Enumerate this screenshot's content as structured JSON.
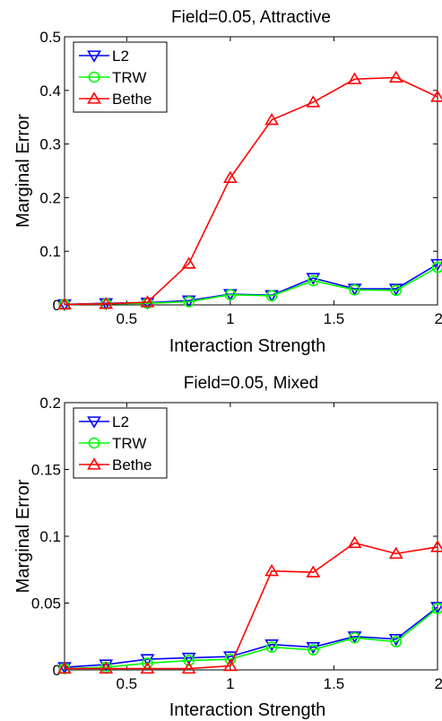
{
  "chart_data": [
    {
      "type": "line",
      "title": "Field=0.05, Attractive",
      "xlabel": "Interaction Strength",
      "ylabel": "Marginal Error",
      "xlim": [
        0.2,
        2
      ],
      "ylim": [
        0,
        0.5
      ],
      "xticks": [
        0.5,
        1,
        1.5,
        2
      ],
      "xtick_labels": [
        "0.5",
        "1",
        "1.5",
        "2"
      ],
      "yticks": [
        0,
        0.1,
        0.2,
        0.3,
        0.4,
        0.5
      ],
      "ytick_labels": [
        "0",
        "0.1",
        "0.2",
        "0.3",
        "0.4",
        "0.5"
      ],
      "grid": false,
      "legend_position": "top-left",
      "x": [
        0.2,
        0.4,
        0.6,
        0.8,
        1.0,
        1.2,
        1.4,
        1.6,
        1.8,
        2.0
      ],
      "series": [
        {
          "name": "L2",
          "color": "#0000ff",
          "marker": "triangle-down",
          "values": [
            0.001,
            0.003,
            0.004,
            0.008,
            0.02,
            0.018,
            0.05,
            0.03,
            0.03,
            0.076
          ]
        },
        {
          "name": "TRW",
          "color": "#00ff00",
          "marker": "circle",
          "values": [
            0.001,
            0.002,
            0.003,
            0.006,
            0.019,
            0.017,
            0.045,
            0.028,
            0.027,
            0.07
          ]
        },
        {
          "name": "Bethe",
          "color": "#ff0000",
          "marker": "triangle-up",
          "values": [
            0.001,
            0.002,
            0.005,
            0.077,
            0.237,
            0.345,
            0.378,
            0.421,
            0.424,
            0.388
          ]
        }
      ]
    },
    {
      "type": "line",
      "title": "Field=0.05, Mixed",
      "xlabel": "Interaction Strength",
      "ylabel": "Marginal Error",
      "xlim": [
        0.2,
        2
      ],
      "ylim": [
        0,
        0.2
      ],
      "xticks": [
        0.5,
        1,
        1.5,
        2
      ],
      "xtick_labels": [
        "0.5",
        "1",
        "1.5",
        "2"
      ],
      "yticks": [
        0,
        0.05,
        0.1,
        0.15,
        0.2
      ],
      "ytick_labels": [
        "0",
        "0.05",
        "0.1",
        "0.15",
        "0.2"
      ],
      "grid": false,
      "legend_position": "top-left",
      "x": [
        0.2,
        0.4,
        0.6,
        0.8,
        1.0,
        1.2,
        1.4,
        1.6,
        1.8,
        2.0
      ],
      "series": [
        {
          "name": "L2",
          "color": "#0000ff",
          "marker": "triangle-down",
          "values": [
            0.002,
            0.004,
            0.008,
            0.009,
            0.01,
            0.019,
            0.017,
            0.025,
            0.023,
            0.047
          ]
        },
        {
          "name": "TRW",
          "color": "#00ff00",
          "marker": "circle",
          "values": [
            0.001,
            0.002,
            0.005,
            0.007,
            0.008,
            0.017,
            0.015,
            0.024,
            0.021,
            0.046
          ]
        },
        {
          "name": "Bethe",
          "color": "#ff0000",
          "marker": "triangle-up",
          "values": [
            0.001,
            0.001,
            0.001,
            0.001,
            0.003,
            0.074,
            0.073,
            0.095,
            0.087,
            0.092
          ]
        }
      ]
    }
  ]
}
